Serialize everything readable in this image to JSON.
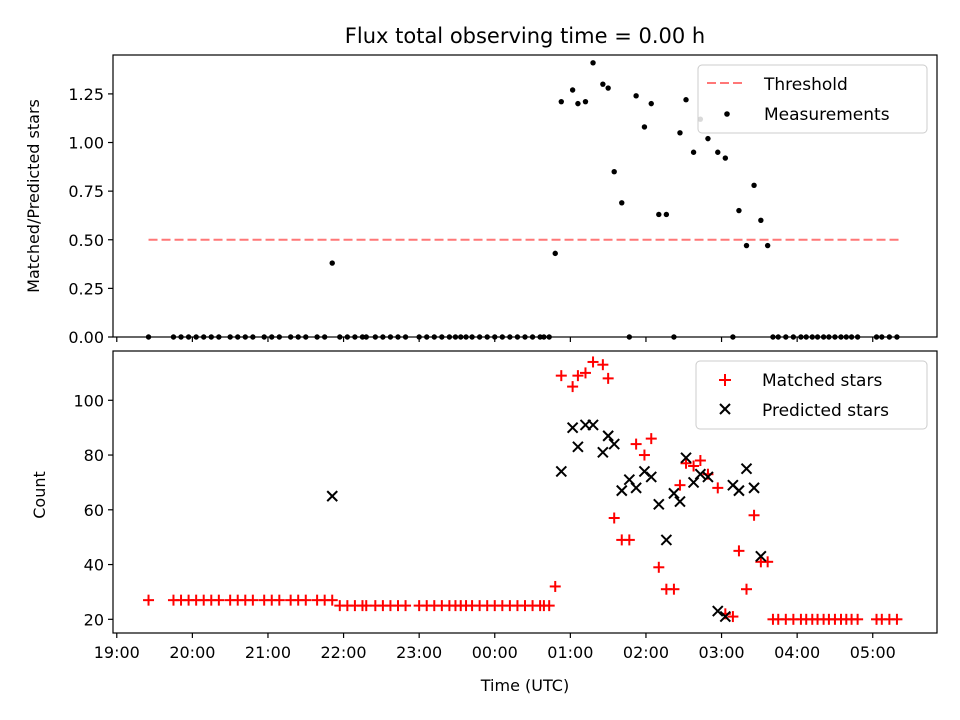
{
  "chart_data": [
    {
      "type": "scatter",
      "title": "Flux total observing time = 0.00 h",
      "xlabel": "",
      "ylabel": "Matched/Predicted stars",
      "xlim": [
        -0.05,
        10.85
      ],
      "ylim": [
        0.0,
        1.45
      ],
      "x_tick_labels": [
        "19:00",
        "20:00",
        "21:00",
        "22:00",
        "23:00",
        "00:00",
        "01:00",
        "02:00",
        "03:00",
        "04:00",
        "05:00"
      ],
      "x_tick_labels_visible": false,
      "y_ticks": [
        0.0,
        0.25,
        0.5,
        0.75,
        1.0,
        1.25
      ],
      "y_tick_labels": [
        "0.00",
        "0.25",
        "0.50",
        "0.75",
        "1.00",
        "1.25"
      ],
      "legend_position": "upper right",
      "legend": [
        "Threshold",
        "Measurements"
      ],
      "threshold": {
        "name": "Threshold",
        "y": 0.5,
        "x_range": [
          0.42,
          10.35
        ],
        "color": "#ff7777",
        "style": "dashed"
      },
      "series": [
        {
          "name": "Measurements",
          "color": "#000000",
          "marker": "dot",
          "x": [
            0.42,
            0.75,
            0.85,
            0.95,
            1.05,
            1.15,
            1.25,
            1.35,
            1.5,
            1.6,
            1.7,
            1.8,
            1.95,
            2.05,
            2.15,
            2.3,
            2.4,
            2.5,
            2.65,
            2.75,
            2.85,
            2.95,
            3.05,
            3.15,
            3.25,
            3.3,
            3.42,
            3.52,
            3.62,
            3.72,
            3.82,
            4.0,
            4.1,
            4.2,
            4.3,
            4.4,
            4.48,
            4.55,
            4.62,
            4.7,
            4.8,
            4.9,
            5.0,
            5.1,
            5.2,
            5.3,
            5.4,
            5.5,
            5.6,
            5.65,
            5.72,
            5.8,
            5.88,
            6.03,
            6.1,
            6.2,
            6.3,
            6.43,
            6.5,
            6.58,
            6.68,
            6.78,
            6.87,
            6.98,
            7.07,
            7.17,
            7.27,
            7.37,
            7.45,
            7.53,
            7.63,
            7.72,
            7.82,
            7.95,
            8.05,
            8.15,
            8.23,
            8.33,
            8.43,
            8.52,
            8.61,
            8.68,
            8.75,
            8.85,
            8.95,
            9.05,
            9.12,
            9.2,
            9.27,
            9.35,
            9.42,
            9.5,
            9.58,
            9.65,
            9.72,
            9.8,
            10.05,
            10.12,
            10.22,
            10.32
          ],
          "y": [
            0.0,
            0.0,
            0.0,
            0.0,
            0.0,
            0.0,
            0.0,
            0.0,
            0.0,
            0.0,
            0.0,
            0.0,
            0.0,
            0.0,
            0.0,
            0.0,
            0.0,
            0.0,
            0.0,
            0.0,
            0.38,
            0.0,
            0.0,
            0.0,
            0.0,
            0.0,
            0.0,
            0.0,
            0.0,
            0.0,
            0.0,
            0.0,
            0.0,
            0.0,
            0.0,
            0.0,
            0.0,
            0.0,
            0.0,
            0.0,
            0.0,
            0.0,
            0.0,
            0.0,
            0.0,
            0.0,
            0.0,
            0.0,
            0.0,
            0.0,
            0.0,
            0.43,
            1.21,
            1.27,
            1.2,
            1.21,
            1.41,
            1.3,
            1.28,
            0.85,
            0.69,
            0.0,
            1.24,
            1.08,
            1.2,
            0.63,
            0.63,
            0.0,
            1.05,
            1.22,
            0.95,
            1.12,
            1.02,
            0.95,
            0.92,
            0.0,
            0.65,
            0.47,
            0.78,
            0.6,
            0.47,
            0.0,
            0.0,
            0.0,
            0.0,
            0.0,
            0.0,
            0.0,
            0.0,
            0.0,
            0.0,
            0.0,
            0.0,
            0.0,
            0.0,
            0.0,
            0.0,
            0.0,
            0.0,
            0.0
          ]
        }
      ]
    },
    {
      "type": "scatter",
      "title": "",
      "xlabel": "Time (UTC)",
      "ylabel": "Count",
      "xlim": [
        -0.05,
        10.85
      ],
      "ylim": [
        15,
        118
      ],
      "x_ticks": [
        0,
        1,
        2,
        3,
        4,
        5,
        6,
        7,
        8,
        9,
        10
      ],
      "x_tick_labels": [
        "19:00",
        "20:00",
        "21:00",
        "22:00",
        "23:00",
        "00:00",
        "01:00",
        "02:00",
        "03:00",
        "04:00",
        "05:00"
      ],
      "y_ticks": [
        20,
        40,
        60,
        80,
        100
      ],
      "y_tick_labels": [
        "20",
        "40",
        "60",
        "80",
        "100"
      ],
      "legend_position": "upper right",
      "legend": [
        "Matched stars",
        "Predicted stars"
      ],
      "series": [
        {
          "name": "Matched stars",
          "color": "#ff0000",
          "marker": "plus",
          "x": [
            0.42,
            0.75,
            0.85,
            0.95,
            1.05,
            1.15,
            1.25,
            1.35,
            1.5,
            1.6,
            1.7,
            1.8,
            1.95,
            2.05,
            2.15,
            2.3,
            2.4,
            2.5,
            2.65,
            2.75,
            2.85,
            2.95,
            3.05,
            3.15,
            3.25,
            3.3,
            3.42,
            3.52,
            3.62,
            3.72,
            3.82,
            4.0,
            4.1,
            4.2,
            4.3,
            4.4,
            4.48,
            4.55,
            4.62,
            4.7,
            4.8,
            4.9,
            5.0,
            5.1,
            5.2,
            5.3,
            5.4,
            5.5,
            5.6,
            5.65,
            5.72,
            5.8,
            5.88,
            6.03,
            6.1,
            6.2,
            6.3,
            6.43,
            6.5,
            6.58,
            6.68,
            6.78,
            6.87,
            6.98,
            7.07,
            7.17,
            7.27,
            7.37,
            7.45,
            7.53,
            7.63,
            7.72,
            7.82,
            7.95,
            8.05,
            8.15,
            8.23,
            8.33,
            8.43,
            8.52,
            8.61,
            8.68,
            8.75,
            8.85,
            8.95,
            9.05,
            9.12,
            9.2,
            9.27,
            9.35,
            9.42,
            9.5,
            9.58,
            9.65,
            9.72,
            9.8,
            10.05,
            10.12,
            10.22,
            10.32
          ],
          "y": [
            27,
            27,
            27,
            27,
            27,
            27,
            27,
            27,
            27,
            27,
            27,
            27,
            27,
            27,
            27,
            27,
            27,
            27,
            27,
            27,
            27,
            25,
            25,
            25,
            25,
            25,
            25,
            25,
            25,
            25,
            25,
            25,
            25,
            25,
            25,
            25,
            25,
            25,
            25,
            25,
            25,
            25,
            25,
            25,
            25,
            25,
            25,
            25,
            25,
            25,
            25,
            32,
            109,
            105,
            109,
            110,
            114,
            113,
            108,
            57,
            49,
            49,
            84,
            80,
            86,
            39,
            31,
            31,
            69,
            77,
            76,
            78,
            73,
            68,
            22,
            21,
            45,
            31,
            58,
            41,
            41,
            20,
            20,
            20,
            20,
            20,
            20,
            20,
            20,
            20,
            20,
            20,
            20,
            20,
            20,
            20,
            20,
            20,
            20,
            20
          ]
        },
        {
          "name": "Predicted stars",
          "color": "#000000",
          "marker": "x",
          "x": [
            2.85,
            5.88,
            6.03,
            6.1,
            6.2,
            6.3,
            6.43,
            6.5,
            6.58,
            6.68,
            6.78,
            6.87,
            6.98,
            7.07,
            7.17,
            7.27,
            7.37,
            7.45,
            7.53,
            7.63,
            7.72,
            7.82,
            7.95,
            8.05,
            8.15,
            8.23,
            8.33,
            8.43,
            8.52
          ],
          "y": [
            65,
            74,
            90,
            83,
            91,
            91,
            81,
            87,
            84,
            67,
            71,
            68,
            74,
            72,
            62,
            49,
            66,
            63,
            79,
            70,
            73,
            72,
            23,
            21,
            69,
            67,
            75,
            68,
            43
          ]
        }
      ]
    }
  ]
}
